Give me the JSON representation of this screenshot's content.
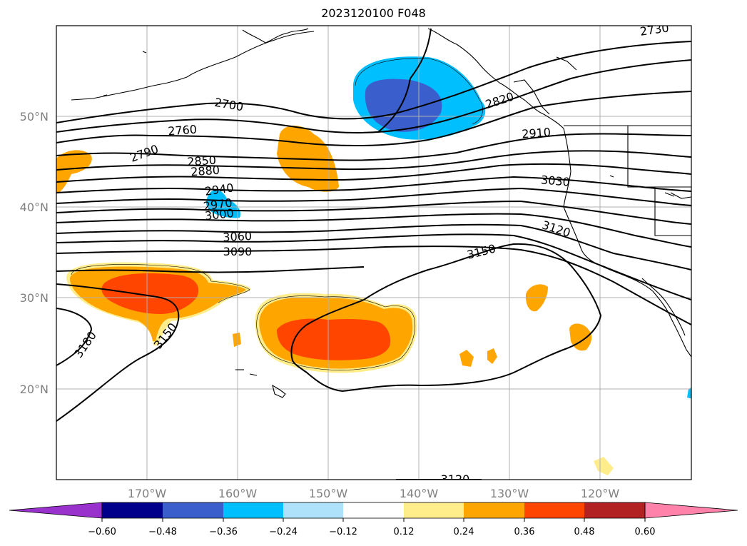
{
  "title": "2023120100 F048",
  "lat_labels": [
    "50°N",
    "40°N",
    "30°N",
    "20°N"
  ],
  "lon_labels": [
    "170°W",
    "160°W",
    "150°W",
    "140°W",
    "130°W",
    "120°W"
  ],
  "contour_labels": [
    "2730",
    "2700",
    "2760",
    "2790",
    "2820",
    "2850",
    "2880",
    "2910",
    "2940",
    "2970",
    "3000",
    "3030",
    "3060",
    "3090",
    "3120",
    "3150",
    "3150",
    "3180",
    "3120"
  ],
  "colorbar": {
    "ticks": [
      "−0.60",
      "−0.48",
      "−0.36",
      "−0.24",
      "−0.12",
      "0.12",
      "0.24",
      "0.36",
      "0.48",
      "0.60"
    ],
    "colors": [
      "#9932CC",
      "#00008B",
      "#3A5FCD",
      "#00BFFF",
      "#ADE2FA",
      "#FFFFFF",
      "#FFEC8B",
      "#FFA500",
      "#FF4500",
      "#B22222",
      "#FF82AB"
    ]
  }
}
